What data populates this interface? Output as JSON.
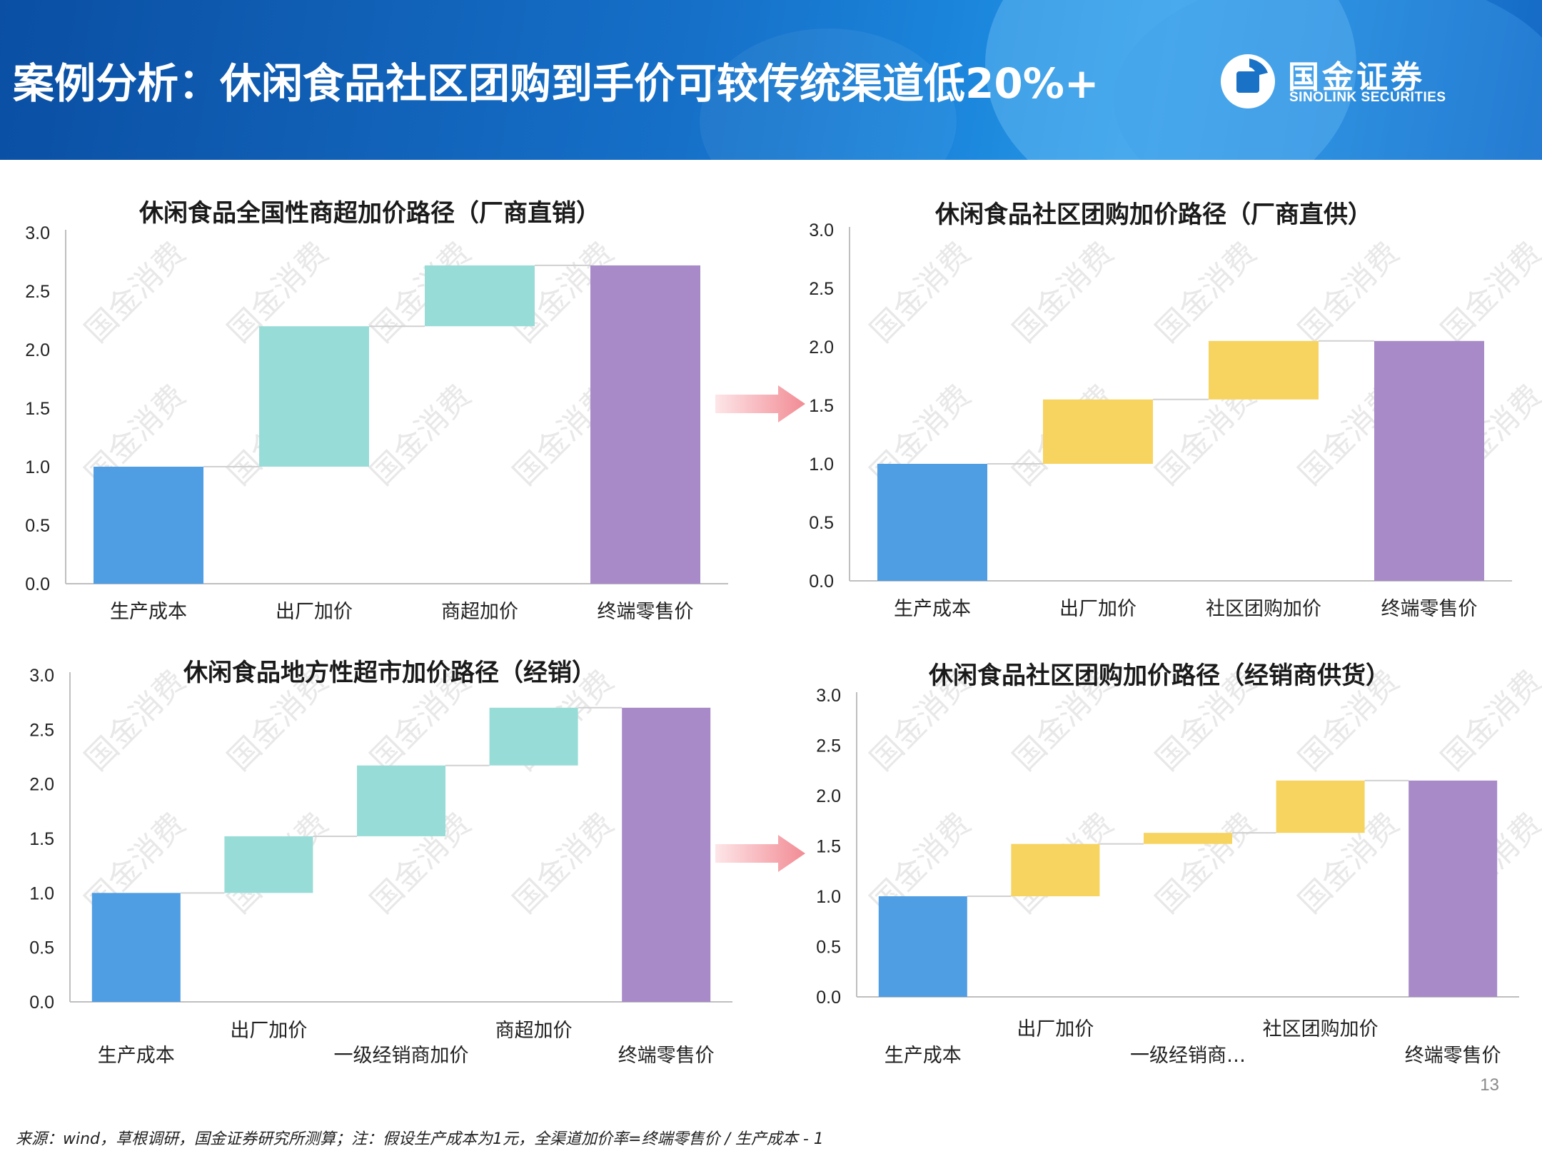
{
  "header": {
    "title": "案例分析：休闲食品社区团购到手价可较传统渠道低20%+",
    "logo_cn": "国金证券",
    "logo_en": "SINOLINK SECURITIES"
  },
  "watermark": "国金消费",
  "page_number": "13",
  "footnote": "来源：wind，草根调研，国金证券研究所测算；注：假设生产成本为1元，全渠道加价率=终端零售价 / 生产成本 - 1",
  "colors": {
    "cost": "#4f9de3",
    "markup_teal": "#98dcd8",
    "markup_yellow": "#f7d35f",
    "retail": "#a78ac7",
    "arrow": "#f4a3a8"
  },
  "chart_data": [
    {
      "type": "bar",
      "title": "休闲食品全国性商超加价路径（厂商直销）",
      "categories": [
        "生产成本",
        "出厂加价",
        "商超加价",
        "终端零售价"
      ],
      "base": [
        0,
        1.0,
        2.2,
        0
      ],
      "values": [
        1.0,
        1.2,
        0.52,
        2.72
      ],
      "kinds": [
        "cost",
        "markup_teal",
        "markup_teal",
        "retail"
      ],
      "ylim": [
        0,
        3.0
      ],
      "yticks": [
        "0.0",
        "0.5",
        "1.0",
        "1.5",
        "2.0",
        "2.5",
        "3.0"
      ]
    },
    {
      "type": "bar",
      "title": "休闲食品社区团购加价路径（厂商直供）",
      "categories": [
        "生产成本",
        "出厂加价",
        "社区团购加价",
        "终端零售价"
      ],
      "base": [
        0,
        1.0,
        1.55,
        0
      ],
      "values": [
        1.0,
        0.55,
        0.5,
        2.05
      ],
      "kinds": [
        "cost",
        "markup_yellow",
        "markup_yellow",
        "retail"
      ],
      "ylim": [
        0,
        3.0
      ],
      "yticks": [
        "0.0",
        "0.5",
        "1.0",
        "1.5",
        "2.0",
        "2.5",
        "3.0"
      ]
    },
    {
      "type": "bar",
      "title": "休闲食品地方性超市加价路径（经销）",
      "categories": [
        "生产成本",
        "出厂加价",
        "一级经销商加价",
        "商超加价",
        "终端零售价"
      ],
      "base": [
        0,
        1.0,
        1.52,
        2.17,
        0
      ],
      "values": [
        1.0,
        0.52,
        0.65,
        0.53,
        2.7
      ],
      "kinds": [
        "cost",
        "markup_teal",
        "markup_teal",
        "markup_teal",
        "retail"
      ],
      "ylim": [
        0,
        3.0
      ],
      "yticks": [
        "0.0",
        "0.5",
        "1.0",
        "1.5",
        "2.0",
        "2.5",
        "3.0"
      ]
    },
    {
      "type": "bar",
      "title": "休闲食品社区团购加价路径（经销商供货）",
      "categories": [
        "生产成本",
        "出厂加价",
        "一级经销商…",
        "社区团购加价",
        "终端零售价"
      ],
      "base": [
        0,
        1.0,
        1.52,
        1.63,
        0
      ],
      "values": [
        1.0,
        0.52,
        0.11,
        0.52,
        2.15
      ],
      "kinds": [
        "cost",
        "markup_yellow",
        "markup_yellow",
        "markup_yellow",
        "retail"
      ],
      "ylim": [
        0,
        3.0
      ],
      "yticks": [
        "0.0",
        "0.5",
        "1.0",
        "1.5",
        "2.0",
        "2.5",
        "3.0"
      ]
    }
  ]
}
